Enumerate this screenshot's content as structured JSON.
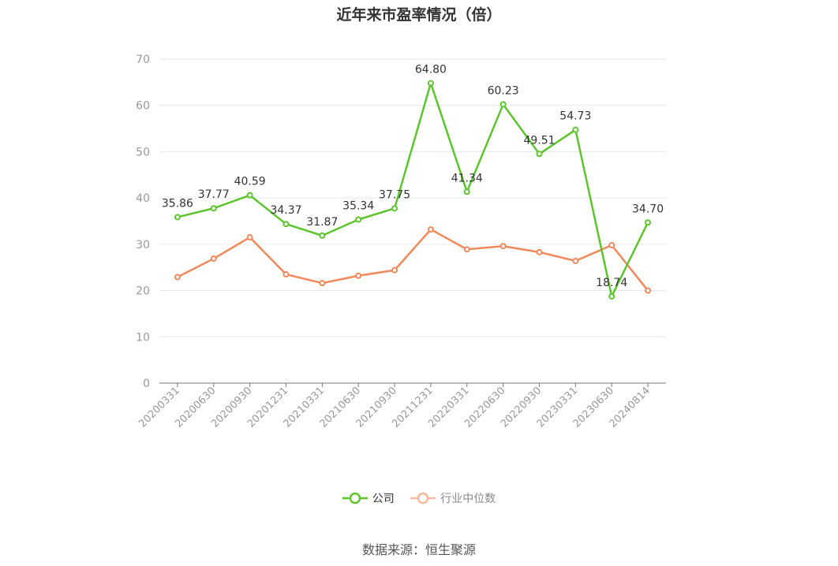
{
  "title": "近年来市盈率情况（倍）",
  "source": "数据来源：恒生聚源",
  "chart_data": {
    "type": "line",
    "title": "近年来市盈率情况（倍）",
    "categories": [
      "20200331",
      "20200630",
      "20200930",
      "20201231",
      "20210331",
      "20210630",
      "20210930",
      "20211231",
      "20220331",
      "20220630",
      "20220930",
      "20230331",
      "20230630",
      "20240814"
    ],
    "series": [
      {
        "name": "公司",
        "color": "#5cc52d",
        "labeled": true,
        "values": [
          35.86,
          37.77,
          40.59,
          34.37,
          31.87,
          35.34,
          37.75,
          64.8,
          41.34,
          60.23,
          49.51,
          54.73,
          18.74,
          34.7
        ]
      },
      {
        "name": "行业中位数",
        "color": "#f0885a",
        "labeled": false,
        "values": [
          22.9,
          26.9,
          31.5,
          23.5,
          21.6,
          23.2,
          24.4,
          33.2,
          28.9,
          29.6,
          28.3,
          26.4,
          29.8,
          20.0
        ]
      }
    ],
    "ylim": [
      0,
      70
    ],
    "yticks": [
      0,
      10,
      20,
      30,
      40,
      50,
      60,
      70
    ],
    "grid": true,
    "legend_position": "bottom"
  }
}
